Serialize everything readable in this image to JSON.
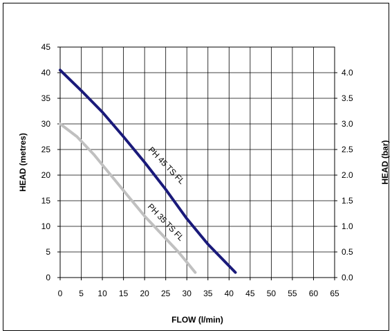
{
  "chart_data": {
    "type": "line",
    "title": "",
    "xlabel": "FLOW (l/min)",
    "ylabel": "HEAD (metres)",
    "y2label": "HEAD (bar)",
    "xlim": [
      0,
      65
    ],
    "ylim": [
      0,
      45
    ],
    "y2lim": [
      0,
      4.5
    ],
    "xticks": [
      0,
      5,
      10,
      15,
      20,
      25,
      30,
      35,
      40,
      45,
      50,
      55,
      60,
      65
    ],
    "yticks": [
      0,
      5,
      10,
      15,
      20,
      25,
      30,
      35,
      40,
      45
    ],
    "y2ticks": [
      "0.0",
      "0.5",
      "1.0",
      "1.5",
      "2.0",
      "2.5",
      "3.0",
      "3.5",
      "4.0"
    ],
    "grid": true,
    "legend": "none",
    "series": [
      {
        "name": "PH 45 TS FL",
        "color": "#1a1a7a",
        "x": [
          0,
          5,
          10,
          15,
          20,
          25,
          30,
          35,
          41.5
        ],
        "y": [
          40.5,
          36.5,
          32.3,
          27.5,
          22.5,
          17.2,
          11.5,
          6.5,
          1.0
        ]
      },
      {
        "name": "PH 35 TS FL",
        "color": "#c0c0c0",
        "x": [
          0,
          4,
          8,
          12,
          16,
          20,
          24,
          28,
          32
        ],
        "y": [
          30,
          27.5,
          24,
          20,
          16,
          12,
          8.5,
          5,
          1
        ]
      }
    ]
  }
}
